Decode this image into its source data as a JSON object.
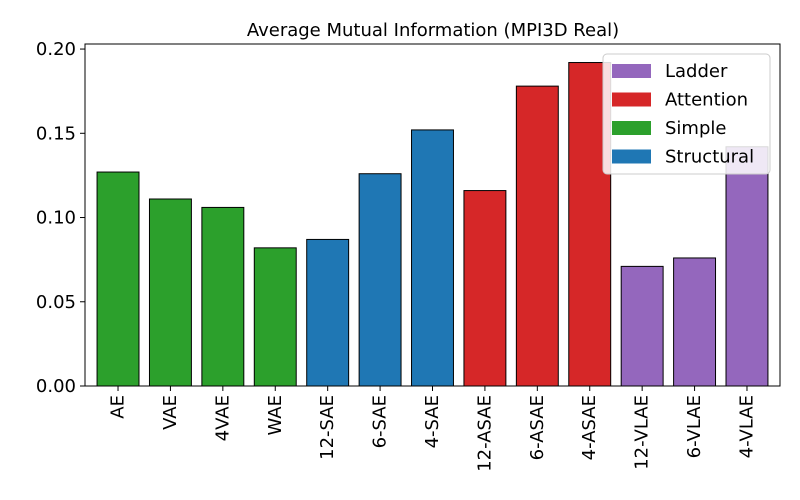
{
  "chart_data": {
    "type": "bar",
    "title": "Average Mutual Information (MPI3D Real)",
    "xlabel": "",
    "ylabel": "",
    "ylim": [
      0,
      0.203
    ],
    "yticks": [
      0.0,
      0.05,
      0.1,
      0.15,
      0.2
    ],
    "ytick_labels": [
      "0.00",
      "0.05",
      "0.10",
      "0.15",
      "0.20"
    ],
    "grid": false,
    "legend_position": "top-right",
    "categories": [
      "AE",
      "VAE",
      "4VAE",
      "WAE",
      "12-SAE",
      "6-SAE",
      "4-SAE",
      "12-ASAE",
      "6-ASAE",
      "4-ASAE",
      "12-VLAE",
      "6-VLAE",
      "4-VLAE"
    ],
    "values": [
      0.127,
      0.111,
      0.106,
      0.082,
      0.087,
      0.126,
      0.152,
      0.116,
      0.178,
      0.192,
      0.071,
      0.076,
      0.142
    ],
    "groups": [
      "Simple",
      "Simple",
      "Simple",
      "Simple",
      "Structural",
      "Structural",
      "Structural",
      "Attention",
      "Attention",
      "Attention",
      "Ladder",
      "Ladder",
      "Ladder"
    ],
    "legend": [
      {
        "name": "Ladder",
        "color": "#9467bd"
      },
      {
        "name": "Attention",
        "color": "#d62728"
      },
      {
        "name": "Simple",
        "color": "#2ca02c"
      },
      {
        "name": "Structural",
        "color": "#1f77b4"
      }
    ]
  }
}
